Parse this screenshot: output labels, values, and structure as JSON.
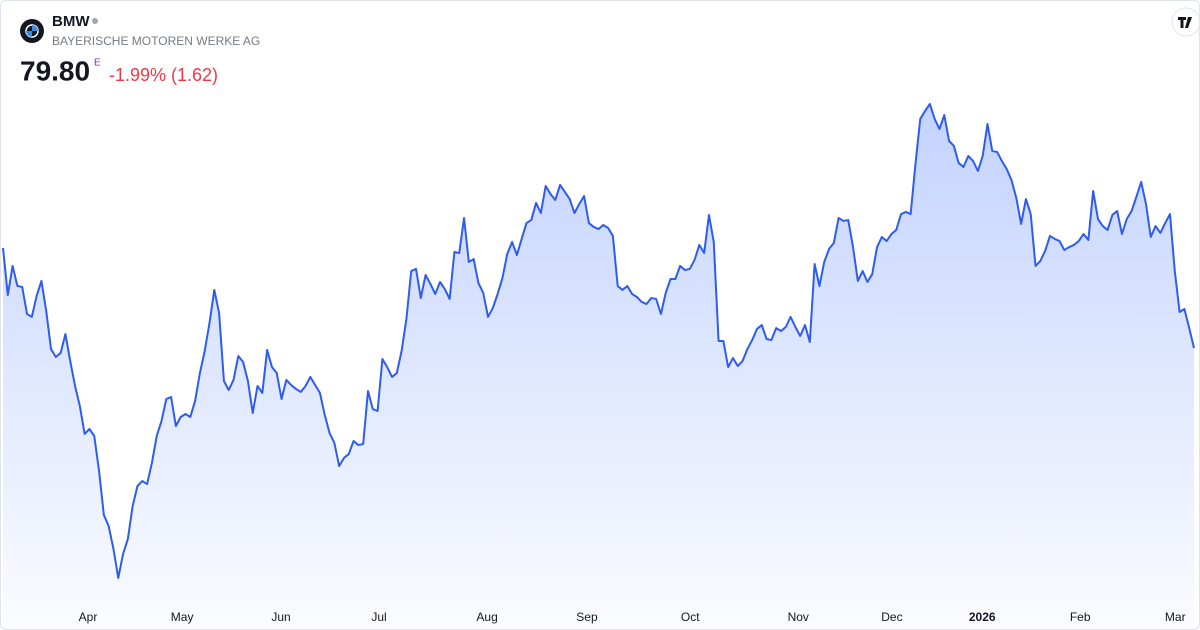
{
  "header": {
    "symbol": "BMW",
    "name": "BAYERISCHE MOTOREN WERKE AG",
    "price": "79.80",
    "flag": "E",
    "change": "-1.99% (1.62)"
  },
  "chart_data": {
    "type": "line",
    "color": "#2f5cf0",
    "area": true,
    "grid": false,
    "ylim": [
      62,
      98
    ],
    "xlim": [
      0,
      248
    ],
    "xticks": [
      {
        "value": 17.7,
        "label": "Apr"
      },
      {
        "value": 37.3,
        "label": "May"
      },
      {
        "value": 57.9,
        "label": "Jun"
      },
      {
        "value": 78.3,
        "label": "Jul"
      },
      {
        "value": 100.8,
        "label": "Aug"
      },
      {
        "value": 121.6,
        "label": "Sep"
      },
      {
        "value": 143.1,
        "label": "Oct"
      },
      {
        "value": 165.6,
        "label": "Nov"
      },
      {
        "value": 185.1,
        "label": "Dec"
      },
      {
        "value": 203.9,
        "label": "2026"
      },
      {
        "value": 224.3,
        "label": "Feb"
      },
      {
        "value": 244.1,
        "label": "Mar"
      }
    ],
    "values": [
      86.47,
      83.33,
      85.27,
      83.93,
      83.87,
      82.07,
      81.87,
      83.27,
      84.27,
      82.27,
      79.73,
      79.2,
      79.47,
      80.73,
      78.93,
      77.27,
      75.93,
      74.07,
      74.4,
      73.93,
      71.6,
      68.67,
      67.93,
      66.4,
      64.47,
      66.07,
      67.07,
      69.27,
      70.6,
      70.93,
      70.73,
      72.13,
      73.93,
      74.93,
      76.4,
      76.53,
      74.6,
      75.2,
      75.4,
      75.2,
      76.27,
      78.13,
      79.6,
      81.47,
      83.67,
      82.13,
      77.6,
      77.0,
      77.67,
      79.27,
      78.87,
      77.6,
      75.47,
      77.27,
      76.8,
      79.67,
      78.53,
      78.13,
      76.4,
      77.67,
      77.33,
      77.07,
      76.87,
      77.27,
      77.87,
      77.33,
      76.8,
      75.33,
      74.13,
      73.47,
      71.93,
      72.47,
      72.73,
      73.6,
      73.33,
      73.4,
      76.93,
      75.73,
      75.6,
      79.07,
      78.53,
      77.87,
      78.13,
      79.6,
      81.73,
      84.93,
      85.07,
      83.13,
      84.67,
      84.07,
      83.4,
      84.2,
      83.73,
      83.07,
      86.2,
      86.13,
      88.47,
      85.53,
      85.73,
      84.13,
      83.47,
      81.87,
      82.47,
      83.4,
      84.47,
      86.07,
      86.87,
      86.0,
      87.07,
      88.13,
      88.33,
      89.47,
      88.8,
      90.6,
      90.07,
      89.67,
      90.67,
      90.2,
      89.73,
      88.8,
      89.4,
      89.93,
      88.13,
      87.87,
      87.73,
      88.0,
      87.8,
      87.27,
      83.93,
      83.67,
      83.93,
      83.4,
      83.2,
      82.87,
      82.73,
      83.13,
      83.07,
      82.07,
      83.47,
      84.4,
      84.4,
      85.27,
      85.0,
      85.07,
      85.67,
      86.67,
      86.13,
      88.67,
      86.87,
      80.27,
      80.27,
      78.53,
      79.13,
      78.6,
      78.93,
      79.73,
      80.33,
      81.07,
      81.33,
      80.4,
      80.33,
      81.13,
      80.93,
      81.2,
      81.87,
      81.2,
      80.6,
      81.33,
      80.2,
      85.4,
      83.93,
      85.53,
      86.4,
      86.8,
      88.47,
      88.27,
      88.33,
      86.53,
      84.27,
      84.93,
      84.2,
      84.73,
      86.53,
      87.2,
      86.93,
      87.4,
      87.67,
      88.73,
      88.87,
      88.73,
      92.07,
      95.07,
      95.6,
      96.07,
      95.07,
      94.4,
      95.33,
      93.6,
      93.27,
      92.13,
      91.87,
      92.6,
      92.27,
      91.6,
      92.6,
      94.73,
      92.93,
      92.87,
      92.27,
      91.73,
      91.0,
      89.8,
      88.07,
      89.73,
      88.73,
      85.27,
      85.6,
      86.27,
      87.27,
      87.07,
      86.93,
      86.33,
      86.53,
      86.67,
      86.93,
      87.4,
      87.0,
      90.27,
      88.4,
      87.93,
      87.67,
      88.67,
      88.93,
      87.4,
      88.4,
      88.93,
      89.87,
      90.87,
      89.4,
      87.2,
      87.93,
      87.47,
      88.13,
      88.73,
      84.93,
      82.2,
      82.4,
      81.13,
      79.8
    ]
  }
}
